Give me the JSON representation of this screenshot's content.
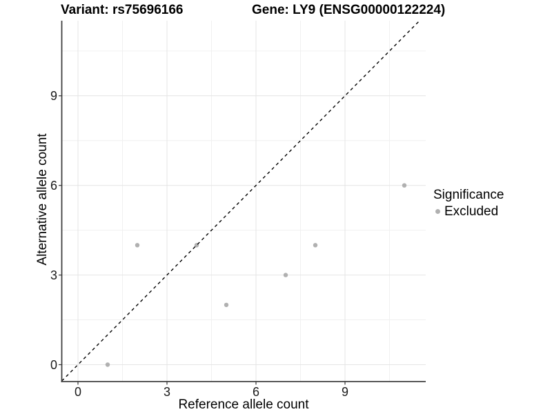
{
  "titles": {
    "variant": "Variant: rs75696166",
    "gene": "Gene: LY9 (ENSG00000122224)"
  },
  "legend": {
    "title": "Significance",
    "items": [
      {
        "label": "Excluded",
        "color": "#b0b0b0"
      }
    ]
  },
  "colors": {
    "background": "#ffffff",
    "major_gridline": "#e4e4e4",
    "minor_gridline": "#f0f0f0",
    "axis_line": "#404040",
    "tick_mark": "#333333",
    "point": "#b0b0b0",
    "reference_line": "#000000"
  },
  "chart_data": {
    "type": "scatter",
    "title": "Variant: rs75696166 — Gene: LY9 (ENSG00000122224)",
    "xlabel": "Reference allele count",
    "ylabel": "Alternative allele count",
    "xlim": [
      -0.55,
      11.72
    ],
    "ylim": [
      -0.57,
      11.51
    ],
    "x_ticks": [
      0,
      3,
      6,
      9
    ],
    "y_ticks": [
      0,
      3,
      6,
      9
    ],
    "x_minor_gridlines": [
      1.5,
      4.5,
      7.5,
      10.5
    ],
    "y_minor_gridlines": [
      1.5,
      4.5,
      7.5,
      10.5
    ],
    "grid": true,
    "legend_position": "right",
    "series": [
      {
        "name": "Excluded",
        "color": "#b0b0b0",
        "points": [
          {
            "x": 1,
            "y": 0
          },
          {
            "x": 2,
            "y": 4
          },
          {
            "x": 4,
            "y": 4
          },
          {
            "x": 5,
            "y": 2
          },
          {
            "x": 7,
            "y": 3
          },
          {
            "x": 8,
            "y": 4
          },
          {
            "x": 11,
            "y": 6
          }
        ]
      }
    ],
    "reference_line": {
      "type": "identity y = x",
      "style": "dashed",
      "color": "#000000"
    }
  }
}
